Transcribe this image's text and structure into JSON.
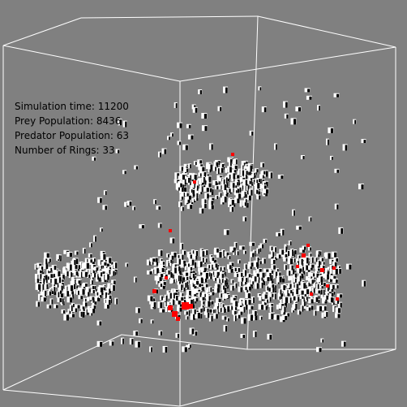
{
  "hud": {
    "simulation_time": "Simulation time: 11200",
    "prey_population": "Prey Population: 8436",
    "predator_population": "Predator Population: 63",
    "number_of_rings": "Number of Rings: 33"
  },
  "colors": {
    "background": "#808080",
    "box_edges": "#ffffff",
    "prey": "#ffffff",
    "prey_shadow": "#000000",
    "predator": "#ff0000"
  }
}
